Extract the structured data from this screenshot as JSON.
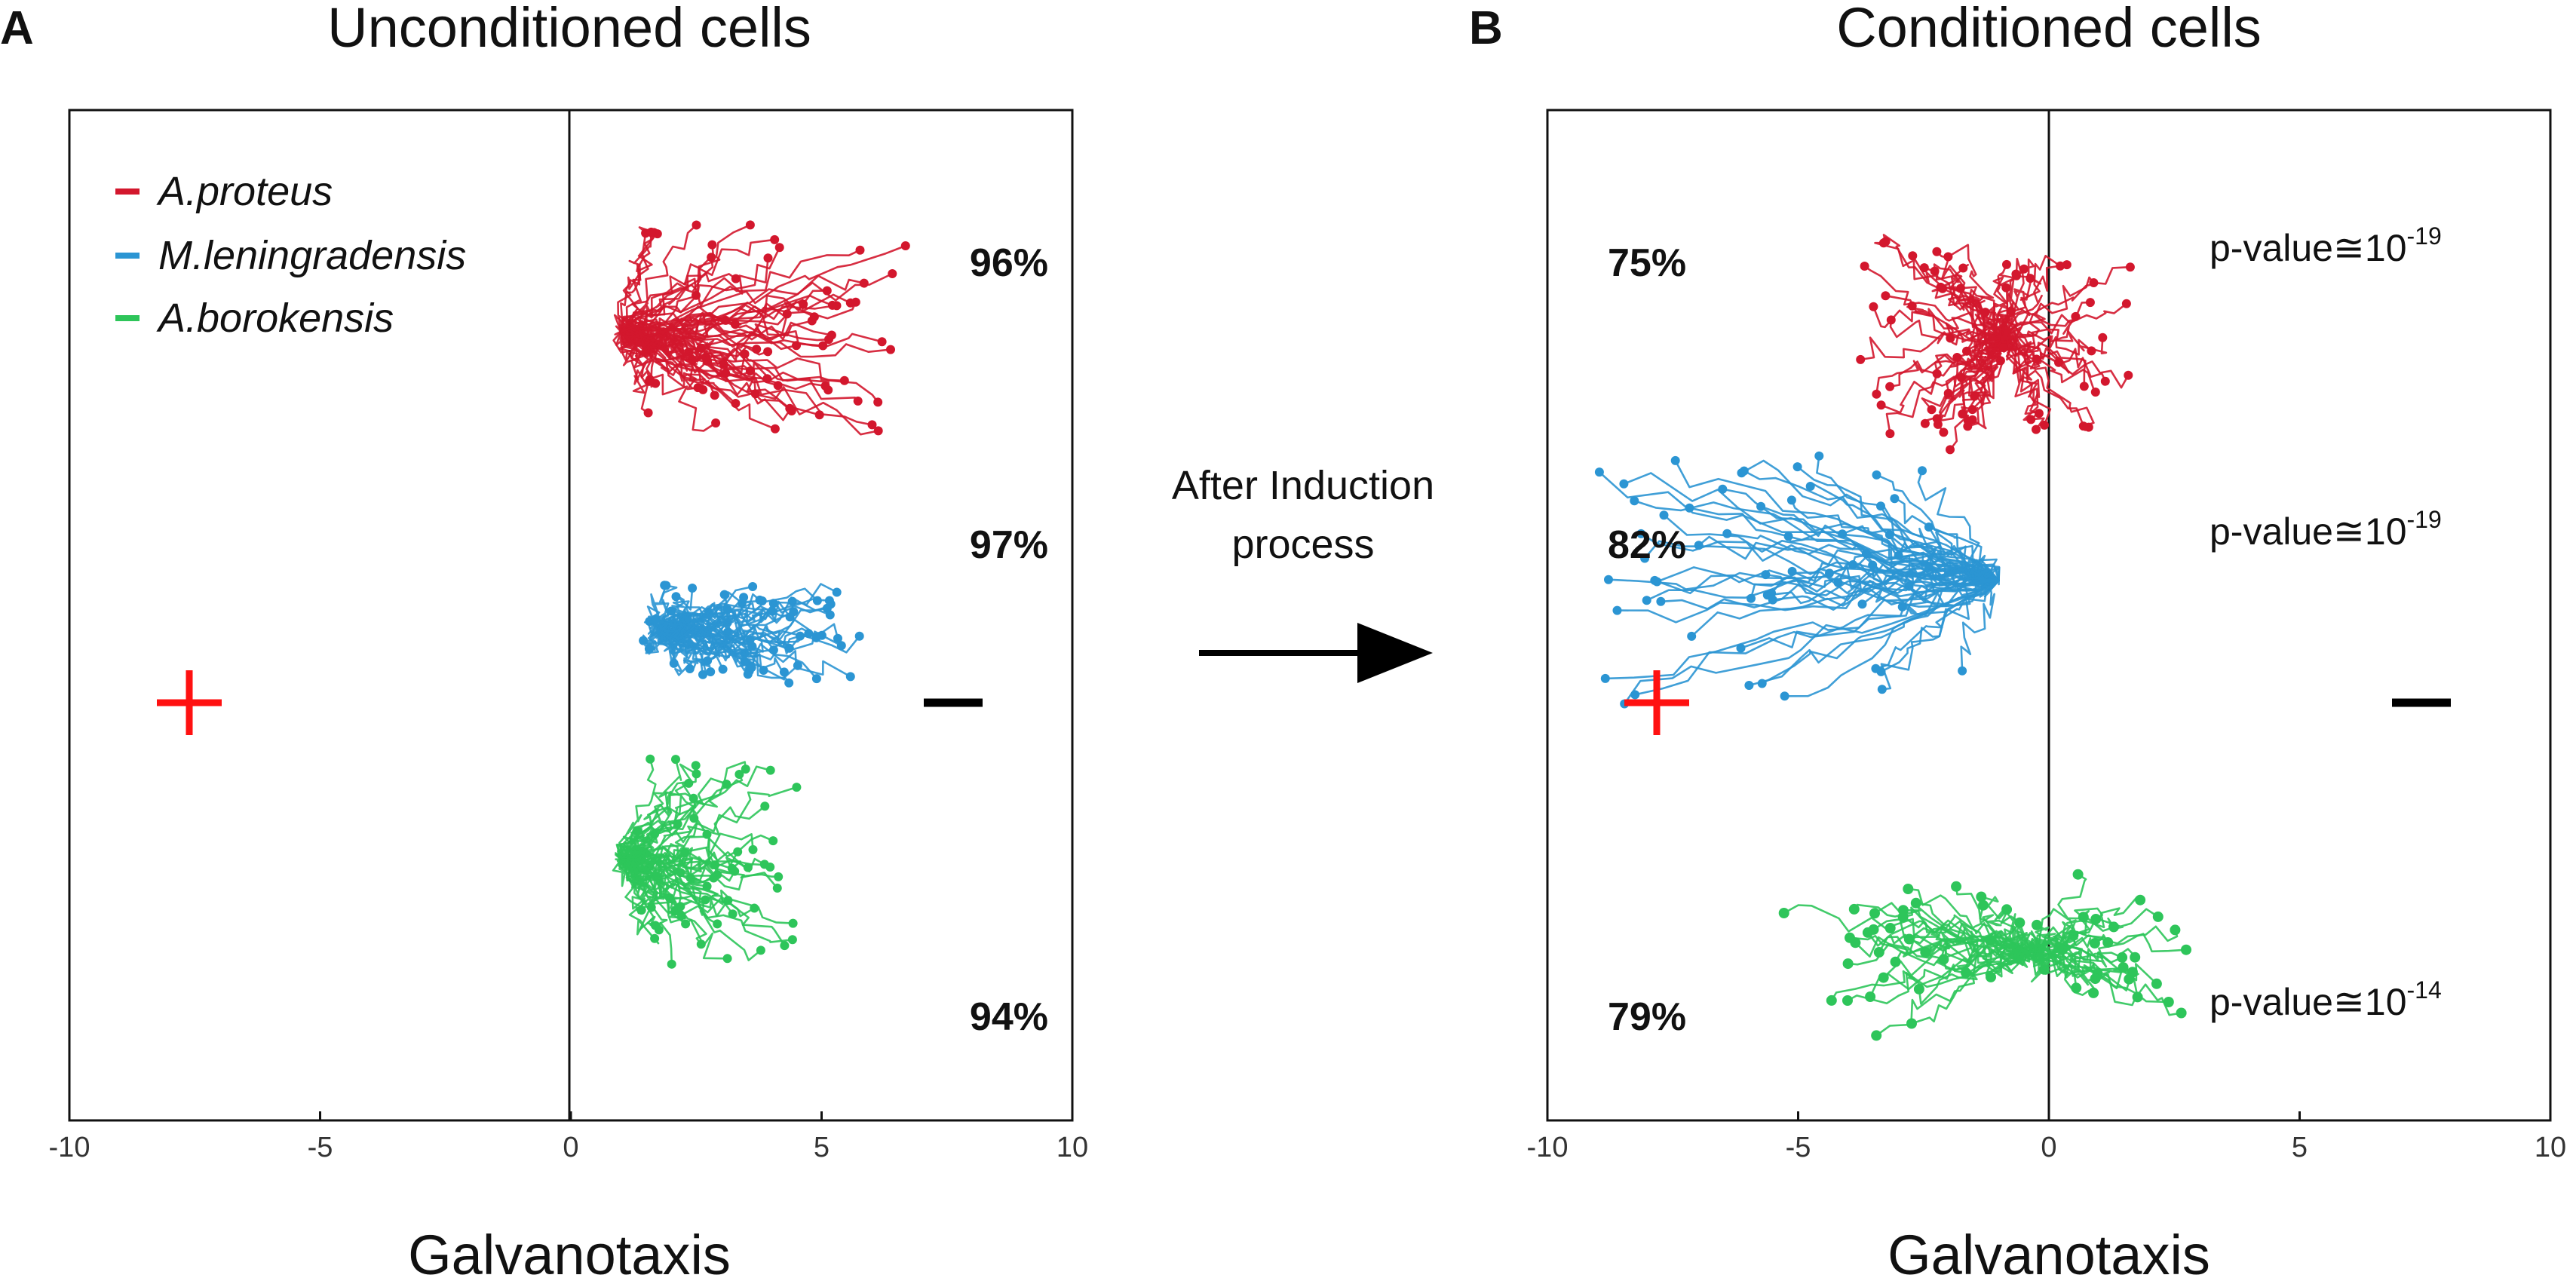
{
  "colors": {
    "proteus": "#d3172d",
    "leningradensis": "#2b95d3",
    "borokensis": "#2ec55a",
    "plus": "#ff1111",
    "minus": "#000000"
  },
  "labels": {
    "panel_a": "A",
    "panel_b": "B",
    "arrow_line1": "After Induction",
    "arrow_line2": "process",
    "plus_sign": "+",
    "minus_sign": "−"
  },
  "chart_data": [
    {
      "type": "line",
      "panel": "A",
      "title": "Unconditioned cells",
      "xlabel": "Galvanotaxis",
      "xlim": [
        -10,
        10
      ],
      "xticks": [
        "-10",
        "-5",
        "0",
        "5",
        "10"
      ],
      "legend": [
        {
          "key": "proteus",
          "label": "A.proteus"
        },
        {
          "key": "leningradensis",
          "label": "M.leningradensis"
        },
        {
          "key": "borokensis",
          "label": "A.borokensis"
        }
      ],
      "series": [
        {
          "key": "proteus",
          "name": "A.proteus",
          "percent": "96%",
          "origin_x": 1,
          "mean_end_x": 3.9,
          "spread_x": 2.6,
          "spread_y": 2.2,
          "count": 70,
          "seed": 11
        },
        {
          "key": "leningradensis",
          "name": "M.leningradensis",
          "percent": "97%",
          "origin_x": 1.8,
          "mean_end_x": 3.6,
          "spread_x": 2.2,
          "spread_y": 0.9,
          "count": 60,
          "seed": 23
        },
        {
          "key": "borokensis",
          "name": "A.borokensis",
          "percent": "94%",
          "origin_x": 1,
          "mean_end_x": 2.8,
          "spread_x": 1.6,
          "spread_y": 2.2,
          "count": 60,
          "seed": 37
        }
      ]
    },
    {
      "type": "line",
      "panel": "B",
      "title": "Conditioned cells",
      "xlabel": "Galvanotaxis",
      "xlim": [
        -10,
        10
      ],
      "xticks": [
        "-10",
        "-5",
        "0",
        "5",
        "10"
      ],
      "series": [
        {
          "key": "proteus",
          "name": "A.proteus",
          "percent": "75%",
          "p_value_base": "p-value≅10",
          "p_value_exp": "-19",
          "origin_x": -0.9,
          "mean_end_x": -1.2,
          "spread_x": 2.8,
          "spread_y": 2.2,
          "count": 70,
          "seed": 51
        },
        {
          "key": "leningradensis",
          "name": "M.leningradensis",
          "percent": "82%",
          "p_value_base": "p-value≅10",
          "p_value_exp": "-19",
          "origin_x": -1.0,
          "mean_end_x": -5.4,
          "spread_x": 3.5,
          "spread_y": 2.6,
          "count": 60,
          "seed": 67
        },
        {
          "key": "borokensis",
          "name": "A.borokensis",
          "percent": "79%",
          "p_value_base": "p-value≅10",
          "p_value_exp": "-14",
          "origin_x": -0.4,
          "mean_end_x": -1.4,
          "spread_x": 4.2,
          "spread_y": 1.6,
          "count": 60,
          "seed": 79
        }
      ]
    }
  ]
}
